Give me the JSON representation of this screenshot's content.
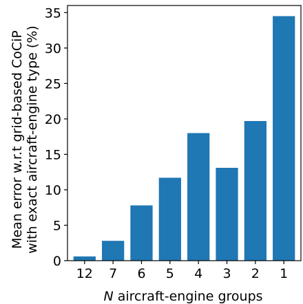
{
  "chart_data": {
    "type": "bar",
    "categories": [
      "12",
      "7",
      "6",
      "5",
      "4",
      "3",
      "2",
      "1"
    ],
    "values": [
      0.6,
      2.8,
      7.8,
      11.7,
      18.0,
      13.1,
      19.7,
      34.5
    ],
    "xlabel_var": "N",
    "xlabel_rest": " aircraft-engine groups",
    "ylabel_line1": "Mean error w.r.t grid-based CoCiP",
    "ylabel_line2": "with exact aircraft-engine type (%)",
    "ylim": [
      0,
      36
    ],
    "yticks": [
      0,
      5,
      10,
      15,
      20,
      25,
      30,
      35
    ],
    "bar_color": "#1f77b4",
    "grid": false,
    "legend": "none"
  }
}
